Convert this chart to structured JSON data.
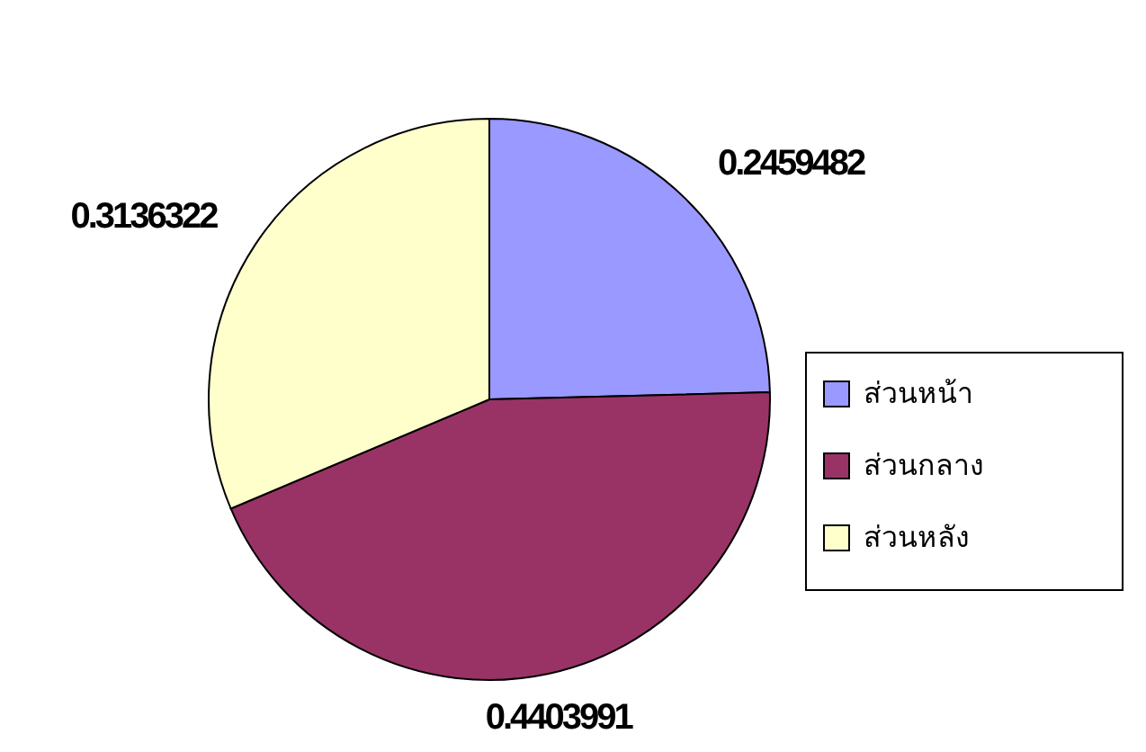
{
  "chart_data": {
    "type": "pie",
    "categories": [
      "ส่วนหน้า",
      "ส่วนกลาง",
      "ส่วนหลัง"
    ],
    "values": [
      0.2459482,
      0.4403991,
      0.3136322
    ],
    "colors": [
      "#9999ff",
      "#993366",
      "#ffffcc"
    ],
    "data_labels": true,
    "legend": "right"
  }
}
